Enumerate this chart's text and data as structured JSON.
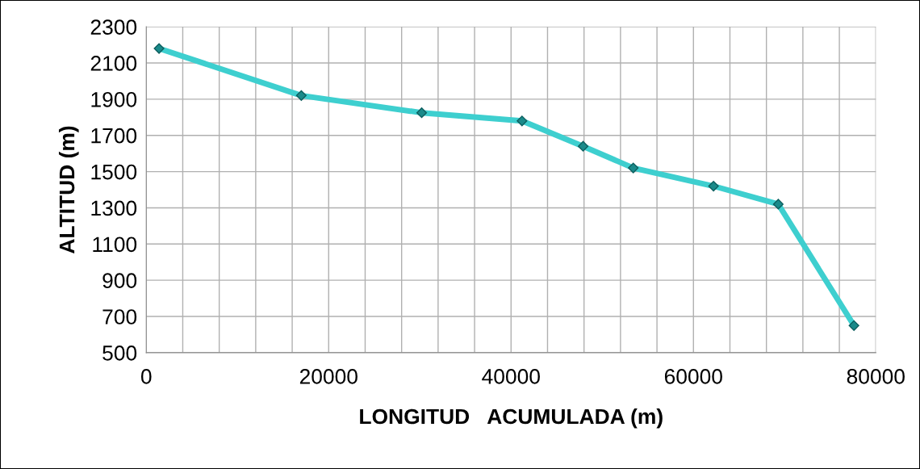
{
  "chart_data": {
    "type": "line",
    "xlabel": "LONGITUD   ACUMULADA (m)",
    "ylabel": "ALTITUD (m)",
    "x": [
      1400,
      17000,
      30200,
      41200,
      47900,
      53400,
      62200,
      69300,
      77600
    ],
    "series": [
      {
        "color": "#3ecfcf",
        "values": [
          2180,
          1920,
          1825,
          1780,
          1640,
          1520,
          1420,
          1320,
          650
        ]
      }
    ],
    "xlim": [
      0,
      80000
    ],
    "xticks": [
      0,
      {
        "value": 4000,
        "label": null
      },
      {
        "value": 8000,
        "label": null
      },
      {
        "value": 12000,
        "label": null
      },
      {
        "value": 16000,
        "label": null
      },
      20000,
      {
        "value": 24000,
        "label": null
      },
      {
        "value": 28000,
        "label": null
      },
      {
        "value": 32000,
        "label": null
      },
      {
        "value": 36000,
        "label": null
      },
      40000,
      {
        "value": 44000,
        "label": null
      },
      {
        "value": 48000,
        "label": null
      },
      {
        "value": 52000,
        "label": null
      },
      {
        "value": 56000,
        "label": null
      },
      60000,
      {
        "value": 64000,
        "label": null
      },
      {
        "value": 68000,
        "label": null
      },
      {
        "value": 72000,
        "label": null
      },
      {
        "value": 76000,
        "label": null
      },
      80000
    ],
    "ylim": [
      500,
      2300
    ],
    "yticks": [
      500,
      700,
      900,
      1100,
      1300,
      1500,
      1700,
      1900,
      2100,
      2300
    ],
    "grid": true,
    "marker": "diamond",
    "line_style": "solid",
    "legend": false
  }
}
